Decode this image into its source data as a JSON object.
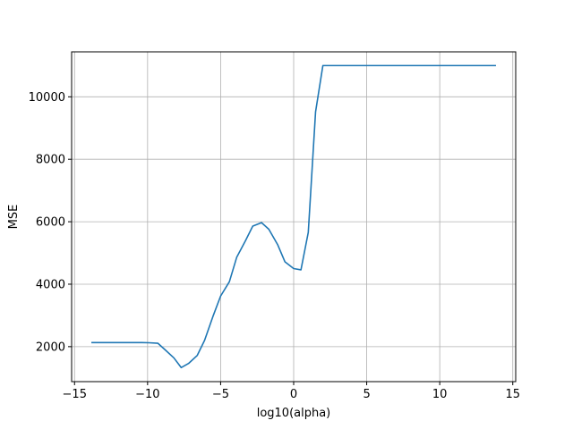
{
  "chart_data": {
    "type": "line",
    "xlabel": "log10(alpha)",
    "ylabel": "MSE",
    "xlim": [
      -15.2,
      15.2
    ],
    "ylim": [
      880,
      11440
    ],
    "grid": true,
    "x_ticks": [
      -15,
      -10,
      -5,
      0,
      5,
      10,
      15
    ],
    "x_tick_labels": [
      "−15",
      "−10",
      "−5",
      "0",
      "5",
      "10",
      "15"
    ],
    "y_ticks": [
      2000,
      4000,
      6000,
      8000,
      10000
    ],
    "y_tick_labels": [
      "2000",
      "4000",
      "6000",
      "8000",
      "10000"
    ],
    "line_color": "#1f77b4",
    "series": [
      {
        "x": [
          -13.8,
          -13.2,
          -12.6,
          -12.1,
          -11.5,
          -11.0,
          -10.4,
          -9.9,
          -9.3,
          -8.8,
          -8.2,
          -7.7,
          -7.2,
          -6.6,
          -6.1,
          -5.5,
          -5.0,
          -4.4,
          -3.9,
          -3.3,
          -2.8,
          -2.2,
          -1.7,
          -1.1,
          -0.6,
          0.0,
          0.5,
          1.0,
          1.5,
          2.0,
          2.5,
          3.0,
          4.0,
          6.0,
          8.0,
          10.0,
          12.0,
          13.8
        ],
        "y": [
          2130,
          2130,
          2130,
          2130,
          2130,
          2130,
          2130,
          2125,
          2110,
          1900,
          1640,
          1330,
          1460,
          1720,
          2200,
          3000,
          3620,
          4080,
          4860,
          5390,
          5860,
          5970,
          5760,
          5270,
          4720,
          4500,
          4460,
          5660,
          9520,
          11000,
          11000,
          11000,
          11000,
          11000,
          11000,
          11000,
          11000,
          11000
        ]
      }
    ]
  }
}
